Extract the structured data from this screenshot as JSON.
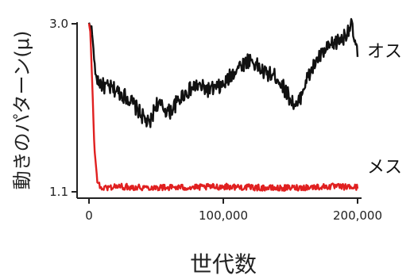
{
  "chart_data": {
    "type": "line",
    "xlabel": "世代数",
    "ylabel": "動きのパターン(μ)",
    "xlim": [
      0,
      200000
    ],
    "ylim": [
      1.1,
      3.0
    ],
    "x_ticks": [
      {
        "value": 0,
        "label": "0"
      },
      {
        "value": 100000,
        "label": "100,000"
      },
      {
        "value": 200000,
        "label": "200,000"
      }
    ],
    "y_ticks": [
      {
        "value": 3.0,
        "label": "3.0"
      },
      {
        "value": 1.1,
        "label": "1.1"
      }
    ],
    "grid": false,
    "legend": "none",
    "series": [
      {
        "name": "オス",
        "color": "#111111",
        "x": [
          0,
          2000,
          5000,
          10000,
          20000,
          30000,
          40000,
          45000,
          50000,
          60000,
          70000,
          80000,
          90000,
          100000,
          110000,
          120000,
          130000,
          140000,
          150000,
          155000,
          160000,
          170000,
          180000,
          190000,
          195000,
          200000
        ],
        "y": [
          3.0,
          2.95,
          2.4,
          2.3,
          2.25,
          2.15,
          1.95,
          1.85,
          2.1,
          2.0,
          2.2,
          2.3,
          2.25,
          2.3,
          2.5,
          2.6,
          2.45,
          2.4,
          2.15,
          2.05,
          2.3,
          2.6,
          2.75,
          2.85,
          3.0,
          2.65
        ]
      },
      {
        "name": "メス",
        "color": "#e02020",
        "x": [
          0,
          1000,
          2500,
          4000,
          6000,
          8000,
          10000,
          20000,
          40000,
          60000,
          80000,
          100000,
          120000,
          140000,
          160000,
          180000,
          200000
        ],
        "y": [
          3.0,
          2.9,
          2.3,
          1.6,
          1.25,
          1.15,
          1.14,
          1.16,
          1.15,
          1.15,
          1.15,
          1.16,
          1.15,
          1.14,
          1.15,
          1.16,
          1.15
        ]
      }
    ]
  }
}
